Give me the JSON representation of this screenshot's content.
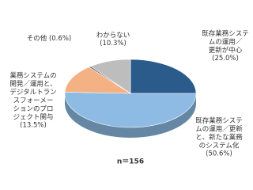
{
  "chart_data": {
    "type": "pie",
    "note": "n＝156",
    "categories": [
      "既存業務システムの運用／更新が中心",
      "既存業務システムの運用／更新と、新たな業務のシステム化",
      "業務システムの開発／運用と、デジタルトランスフォーメーションのプロジェクト関与",
      "その他",
      "わからない"
    ],
    "values": [
      25.0,
      50.6,
      13.5,
      0.6,
      10.3
    ],
    "value_labels": [
      "(25.0%)",
      "(50.6%)",
      "(13.5%)",
      "(0.6%)",
      "(10.3%)"
    ],
    "colors": [
      "#2a5b8a",
      "#8dbbe3",
      "#f4b183",
      "#6f6f6f",
      "#bdbdbd"
    ]
  }
}
